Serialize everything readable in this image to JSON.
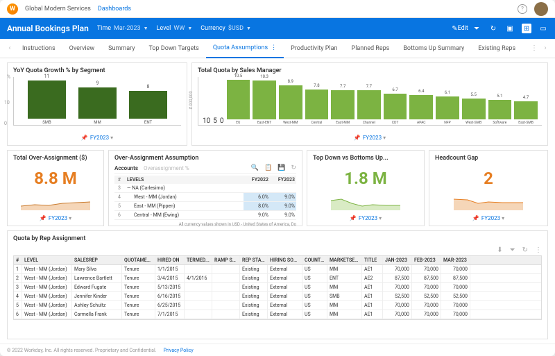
{
  "topbar": {
    "org": "Global Modern Services",
    "link": "Dashboards"
  },
  "bluebar": {
    "title": "Annual Bookings Plan",
    "params": [
      {
        "label": "Time",
        "value": "Mar-2023"
      },
      {
        "label": "Level",
        "value": "WW"
      },
      {
        "label": "Currency",
        "value": "$USD"
      }
    ],
    "edit": "Edit"
  },
  "tabs": [
    "Instructions",
    "Overview",
    "Summary",
    "Top Down Targets",
    "Quota Assumptions",
    "Productivity Plan",
    "Planned Reps",
    "Bottoms Up Summary",
    "Existing Reps"
  ],
  "active_tab": 4,
  "period_footer": "FY2023",
  "yoy": {
    "title": "YoY Quota Growth % by Segment",
    "ylabel": "%",
    "ymax": 10,
    "bar_color": "#3a6b1f",
    "bars": [
      {
        "label": "SMB",
        "value": 11
      },
      {
        "label": "MM",
        "value": 9
      },
      {
        "label": "ENT",
        "value": 8
      }
    ]
  },
  "total_quota": {
    "title": "Total Quota by Sales Manager",
    "ylabel": "# 000,000",
    "ymax": 10,
    "bar_color": "#7cb342",
    "bars": [
      {
        "label": "EU",
        "value": 10.5
      },
      {
        "label": "East-ENT",
        "value": 10.3
      },
      {
        "label": "West-MM",
        "value": 8.9
      },
      {
        "label": "Central",
        "value": 7.8
      },
      {
        "label": "East-MM",
        "value": 7.7
      },
      {
        "label": "Channel",
        "value": 7.7
      },
      {
        "label": "CDT",
        "value": 6.7
      },
      {
        "label": "APAC",
        "value": 6.4
      },
      {
        "label": "NFP",
        "value": 6.1
      },
      {
        "label": "West-SMB",
        "value": 5.5
      },
      {
        "label": "Software",
        "value": 5.1
      },
      {
        "label": "East-SMB",
        "value": 4.7
      }
    ]
  },
  "over_assign_total": {
    "title": "Total Over-Assignment ($)",
    "value": "8.8 M",
    "color": "#e67e22"
  },
  "over_assign_table": {
    "title": "Over-Assignment Assumption",
    "tab1": "Accounts",
    "tab2": "Overassignment %",
    "cols": [
      "#",
      "LEVELS",
      "FY2022",
      "FY2023"
    ],
    "rows": [
      {
        "n": "3",
        "lvl": "— NA (Carlesimo)",
        "a": "",
        "b": ""
      },
      {
        "n": "4",
        "lvl": "West - MM (Jordan)",
        "a": "6.0%",
        "b": "9.0%",
        "hl": true
      },
      {
        "n": "5",
        "lvl": "East - MM (Pippen)",
        "a": "8.0%",
        "b": "9.0%",
        "hl": true
      },
      {
        "n": "6",
        "lvl": "Central - MM (Ewing)",
        "a": "9.0%",
        "b": "9.0%"
      }
    ],
    "note": "All currency values shown in USD - United States of America, Do"
  },
  "top_vs_bottom": {
    "title": "Top Down vs Bottoms Up...",
    "value": "1.8 M",
    "color": "#7cb342"
  },
  "headcount": {
    "title": "Headcount Gap",
    "value": "2",
    "color": "#e67e22"
  },
  "rep_table": {
    "title": "Quota by Rep Assignment",
    "cols": [
      "#",
      "LEVEL",
      "SALESREP",
      "QUOTAMET...",
      "HIRED ON",
      "TERMED...",
      "RAMP ST...",
      "REP STAtu...",
      "HIRING SOUR...",
      "COUNTRY",
      "MARKETSEG...",
      "TITLE",
      "JAN-2023",
      "FEB-2023",
      "MAR-2023"
    ],
    "widths": [
      12,
      72,
      72,
      48,
      42,
      40,
      40,
      40,
      50,
      36,
      50,
      30,
      42,
      42,
      42
    ],
    "rows": [
      [
        "1",
        "West - MM (Jordan)",
        "Mary Silva",
        "Tenure",
        "1/1/2015",
        "",
        "",
        "Existing",
        "External",
        "US",
        "MM",
        "AE1",
        "70,000",
        "70,000",
        "70,000"
      ],
      [
        "2",
        "West - MM (Jordan)",
        "Lawrence Bartlett",
        "Tenure",
        "3/4/2015",
        "4/1/2016",
        "",
        "Existing",
        "External",
        "US",
        "ENT",
        "AE2",
        "87,500",
        "87,500",
        "87,500"
      ],
      [
        "3",
        "West - MM (Jordan)",
        "Edward Fugate",
        "Tenure",
        "5/13/2015",
        "",
        "",
        "Existing",
        "External",
        "US",
        "MM",
        "AE1",
        "70,000",
        "70,000",
        "70,000"
      ],
      [
        "4",
        "West - MM (Jordan)",
        "Jennifer Kinder",
        "Tenure",
        "6/16/2015",
        "",
        "",
        "Existing",
        "External",
        "US",
        "SMB",
        "AE1",
        "52,500",
        "52,500",
        "52,500"
      ],
      [
        "5",
        "West - MM (Jordan)",
        "Ashley Schultz",
        "Tenure",
        "6/25/2015",
        "",
        "",
        "Existing",
        "External",
        "US",
        "MM",
        "AE1",
        "70,000",
        "70,000",
        "70,000"
      ],
      [
        "6",
        "West - MM (Jordan)",
        "Carmella Frank",
        "Tenure",
        "7/1/2015",
        "",
        "",
        "Existing",
        "External",
        "US",
        "MM",
        "AE1",
        "70,000",
        "70,000",
        "70,000"
      ]
    ]
  },
  "footer": {
    "copyright": "© 2022 Workday, Inc. All rights reserved. Proprietary and Confidential.",
    "privacy": "Privacy Policy"
  }
}
